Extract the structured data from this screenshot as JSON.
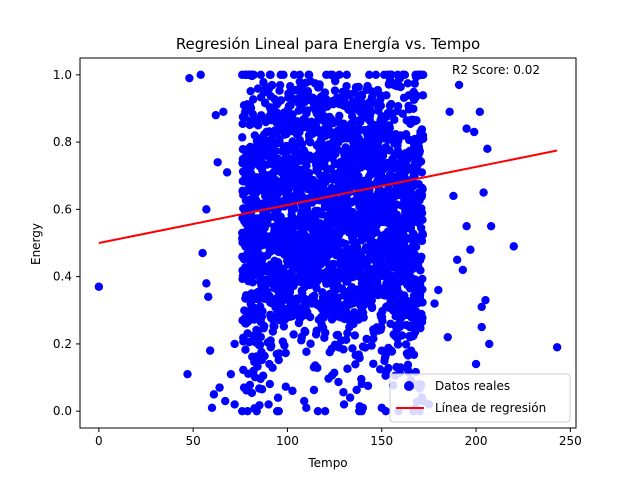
{
  "chart_data": {
    "type": "scatter",
    "title": "Regresión Lineal para Energía vs. Tempo",
    "xlabel": "Tempo",
    "ylabel": "Energy",
    "xlim": [
      -10,
      253
    ],
    "ylim": [
      -0.05,
      1.05
    ],
    "xticks": [
      0,
      50,
      100,
      150,
      200,
      250
    ],
    "yticks": [
      0.0,
      0.2,
      0.4,
      0.6,
      0.8,
      1.0
    ],
    "xtick_labels": [
      "0",
      "50",
      "100",
      "150",
      "200",
      "250"
    ],
    "ytick_labels": [
      "0.0",
      "0.2",
      "0.4",
      "0.6",
      "0.8",
      "1.0"
    ],
    "annotation": "R2 Score: 0.02",
    "grid": false,
    "legend_position": "lower-right",
    "colors": {
      "scatter": "#0000ff",
      "line": "#ff0000"
    },
    "series": [
      {
        "name": "Datos reales",
        "kind": "scatter",
        "points": [
          [
            0,
            0.37
          ],
          [
            47,
            0.11
          ],
          [
            48,
            0.99
          ],
          [
            54,
            1.0
          ],
          [
            55,
            0.47
          ],
          [
            57,
            0.6
          ],
          [
            57,
            0.38
          ],
          [
            58,
            0.34
          ],
          [
            59,
            0.18
          ],
          [
            60,
            0.01
          ],
          [
            61,
            0.05
          ],
          [
            62,
            0.88
          ],
          [
            63,
            0.74
          ],
          [
            64,
            0.07
          ],
          [
            66,
            0.89
          ],
          [
            67,
            0.03
          ],
          [
            68,
            0.71
          ],
          [
            70,
            0.11
          ],
          [
            72,
            0.2
          ],
          [
            72,
            0.02
          ],
          [
            76,
            0.0
          ],
          [
            77,
            0.07
          ],
          [
            90,
            0.02
          ],
          [
            95,
            0.04
          ],
          [
            110,
            0.01
          ],
          [
            120,
            0.0
          ],
          [
            130,
            0.02
          ],
          [
            140,
            0.01
          ],
          [
            150,
            0.01
          ],
          [
            155,
            0.18
          ],
          [
            160,
            0.13
          ],
          [
            160,
            0.4
          ],
          [
            165,
            0.22
          ],
          [
            168,
            0.27
          ],
          [
            170,
            0.08
          ],
          [
            172,
            0.03
          ],
          [
            175,
            0.02
          ],
          [
            178,
            0.32
          ],
          [
            180,
            0.36
          ],
          [
            185,
            0.22
          ],
          [
            186,
            0.89
          ],
          [
            188,
            0.64
          ],
          [
            190,
            0.45
          ],
          [
            191,
            0.97
          ],
          [
            193,
            0.42
          ],
          [
            195,
            0.55
          ],
          [
            195,
            0.84
          ],
          [
            197,
            0.48
          ],
          [
            199,
            0.83
          ],
          [
            200,
            0.14
          ],
          [
            202,
            0.89
          ],
          [
            203,
            0.25
          ],
          [
            203,
            0.31
          ],
          [
            204,
            0.65
          ],
          [
            205,
            0.33
          ],
          [
            206,
            0.78
          ],
          [
            207,
            0.2
          ],
          [
            208,
            0.55
          ],
          [
            220,
            0.49
          ],
          [
            243,
            0.19
          ]
        ]
      },
      {
        "name": "Línea de regresión",
        "kind": "line",
        "x": [
          0,
          243
        ],
        "y": [
          0.5,
          0.775
        ]
      }
    ]
  }
}
